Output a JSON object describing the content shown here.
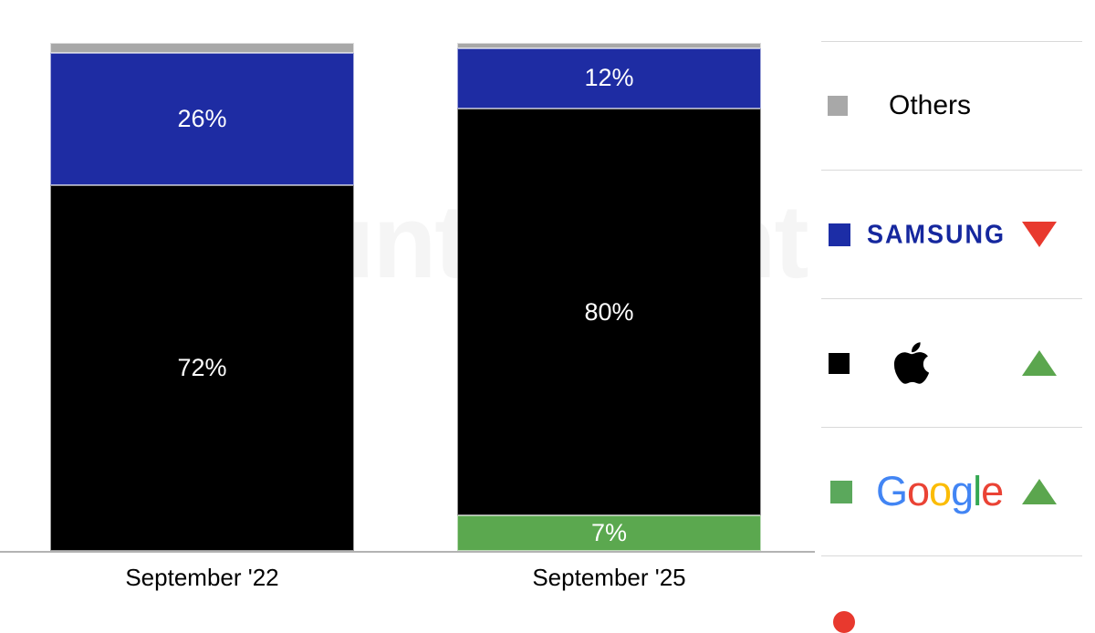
{
  "watermark": {
    "text": "Counterpoint"
  },
  "chart_data": {
    "type": "bar",
    "stacked": true,
    "unit": "percent market share",
    "categories": [
      "September '22",
      "September '25"
    ],
    "series": [
      {
        "name": "Others",
        "color": "#a8a8a8",
        "values": [
          2,
          1
        ],
        "labels": [
          "",
          ""
        ]
      },
      {
        "name": "Samsung",
        "color": "#1e2ca3",
        "values": [
          26,
          12
        ],
        "labels": [
          "26%",
          "12%"
        ]
      },
      {
        "name": "Apple",
        "color": "#000000",
        "values": [
          72,
          80
        ],
        "labels": [
          "72%",
          "80%"
        ]
      },
      {
        "name": "Google",
        "color": "#5ba84f",
        "values": [
          0,
          7
        ],
        "labels": [
          "",
          "7%"
        ]
      }
    ],
    "ylim": [
      0,
      100
    ],
    "grid": false,
    "legend_position": "right"
  },
  "legend": {
    "items": [
      {
        "label": "Others",
        "swatch": "#a8a8a8",
        "trend": "none"
      },
      {
        "label": "SAMSUNG",
        "swatch": "#1c2da6",
        "logo_color": "#15279e",
        "trend": "down",
        "trend_color": "#e8392e"
      },
      {
        "label": "Apple",
        "swatch": "#000000",
        "trend": "up",
        "trend_color": "#5ba64e"
      },
      {
        "label": "Google",
        "swatch": "#5ba85c",
        "trend": "up",
        "trend_color": "#5ba64e",
        "letters": [
          {
            "ch": "G",
            "color": "#4285f4"
          },
          {
            "ch": "o",
            "color": "#ea4335"
          },
          {
            "ch": "o",
            "color": "#fbbc05"
          },
          {
            "ch": "g",
            "color": "#4285f4"
          },
          {
            "ch": "l",
            "color": "#34a853"
          },
          {
            "ch": "e",
            "color": "#ea4335"
          }
        ]
      }
    ]
  },
  "branding": {
    "logo_color": "#e8392e"
  }
}
